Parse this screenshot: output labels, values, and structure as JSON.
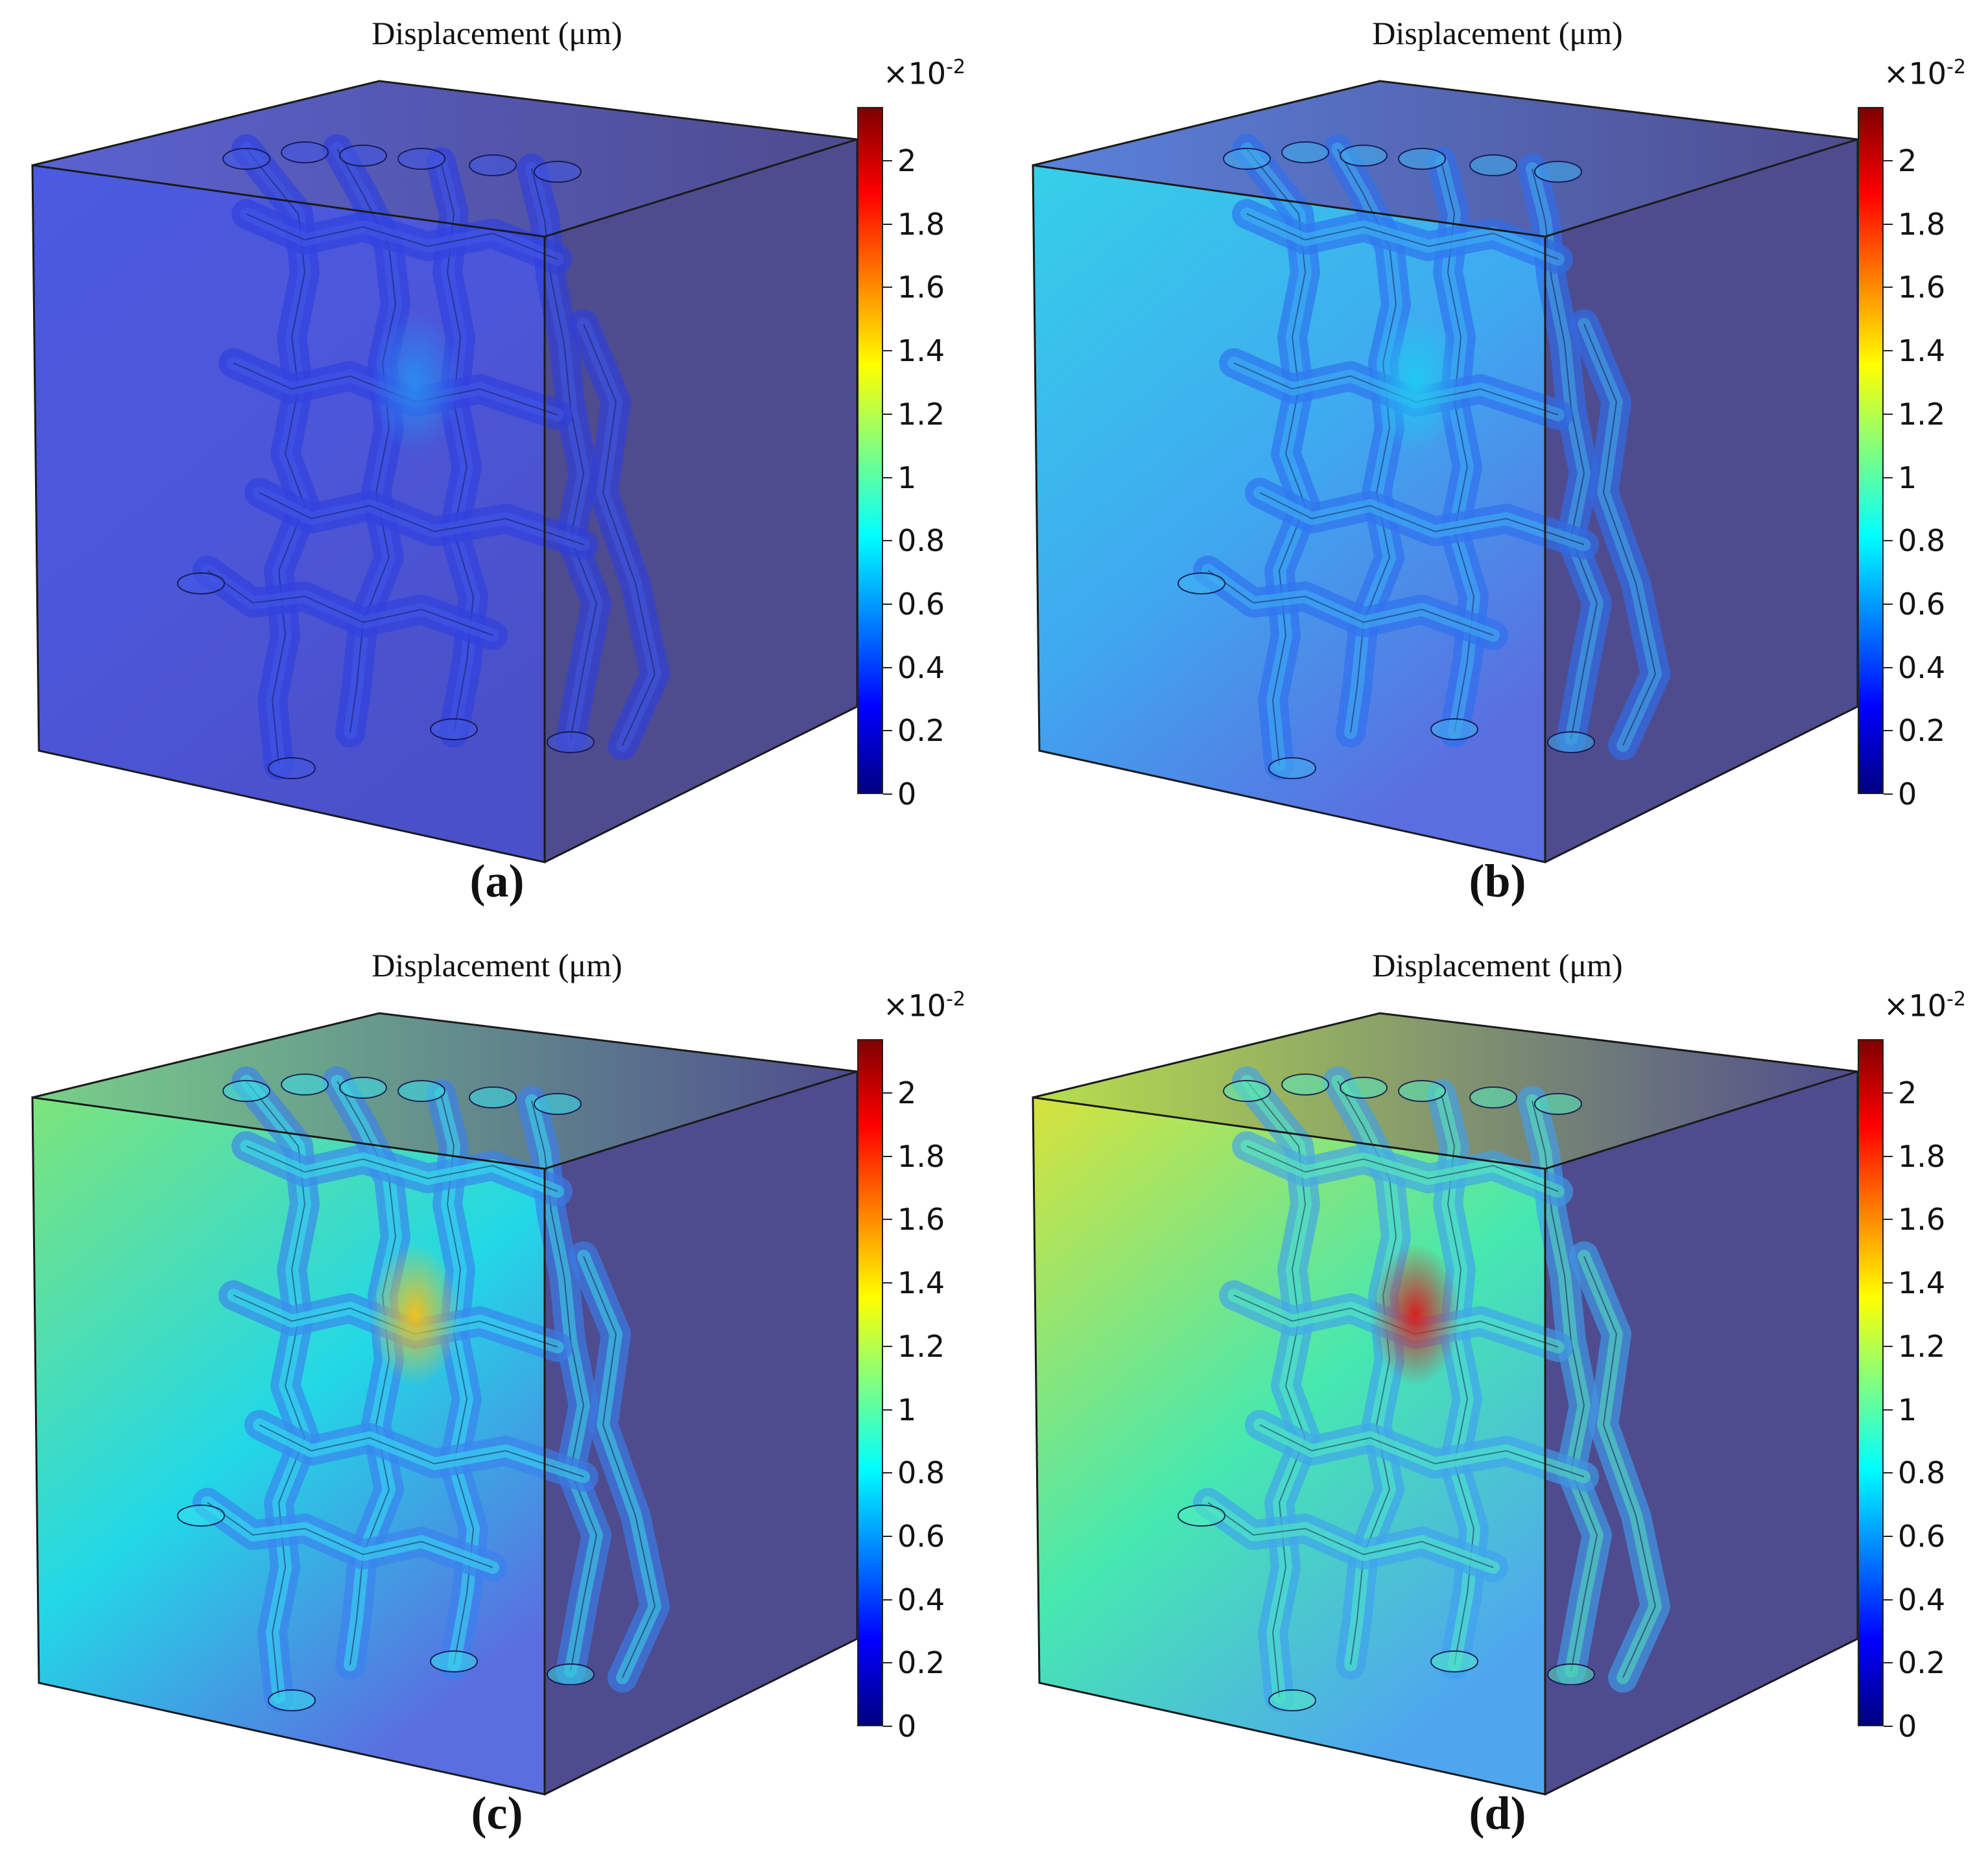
{
  "colors": {
    "scale": [
      "#00007f",
      "#0000ff",
      "#0080ff",
      "#00ffff",
      "#80ff80",
      "#ffff00",
      "#ff8000",
      "#ff0000",
      "#7f0000"
    ],
    "box_side": "#4e4c8e",
    "box_outline": "#1a1a1a"
  },
  "colorbar": {
    "multiplier_base": "×10",
    "multiplier_exp": "-2",
    "ticks": [
      "0",
      "0.2",
      "0.4",
      "0.6",
      "0.8",
      "1",
      "1.2",
      "1.4",
      "1.6",
      "1.8",
      "2"
    ],
    "tick_values": [
      0,
      0.2,
      0.4,
      0.6,
      0.8,
      1.0,
      1.2,
      1.4,
      1.6,
      1.8,
      2.0
    ],
    "max_value": 2.17
  },
  "panels": [
    {
      "title": "Displacement (μm)",
      "label": "(a)",
      "front_top_color": "#4b5ae0",
      "front_mid_color": "#4c56d8",
      "front_bottom_color": "#4a50c8",
      "top_face_color": "#5a62d2",
      "hotspot_color": "#2a8af0",
      "lattice_color": "#2d3fe0",
      "lattice_light": "#3f58e8"
    },
    {
      "title": "Displacement (μm)",
      "label": "(b)",
      "front_top_color": "#35d0e8",
      "front_mid_color": "#3fa8f0",
      "front_bottom_color": "#5a6ee0",
      "top_face_color": "#5a82dc",
      "hotspot_color": "#21c8f0",
      "lattice_color": "#2e6ff0",
      "lattice_light": "#3db4f2"
    },
    {
      "title": "Displacement (μm)",
      "label": "(c)",
      "front_top_color": "#7de47a",
      "front_mid_color": "#22d8e6",
      "front_bottom_color": "#5a6ee0",
      "top_face_color": "#79d08a",
      "hotspot_color": "#f0c020",
      "lattice_color": "#3a80f0",
      "lattice_light": "#36e2ee"
    },
    {
      "title": "Displacement (μm)",
      "label": "(d)",
      "front_top_color": "#d8e23a",
      "front_mid_color": "#46e8b0",
      "front_bottom_color": "#4fa6ef",
      "top_face_color": "#b7e04c",
      "hotspot_color": "#d82020",
      "lattice_color": "#3fa0f0",
      "lattice_light": "#52f0c0"
    }
  ]
}
